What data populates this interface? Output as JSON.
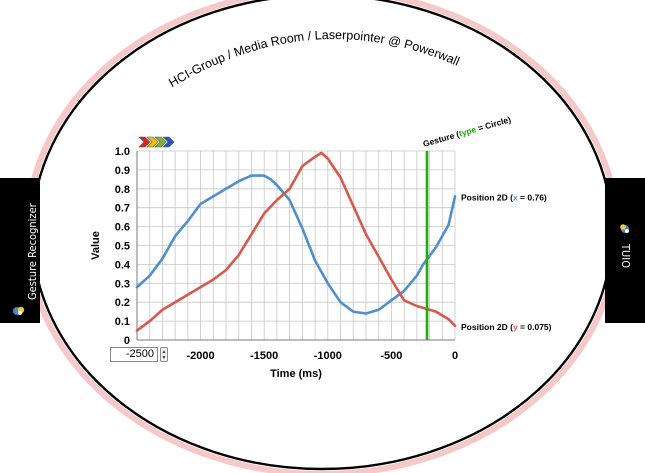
{
  "header": {
    "title": "HCI-Group / Media Room / Laserpointer @ Powerwall"
  },
  "left_tab": {
    "label": "Gesture Recognizer",
    "icon": "recognizer-icon"
  },
  "right_tab": {
    "label": "TUIO",
    "icon": "tuio-icon"
  },
  "gesture_marker": {
    "prefix": "Gesture (",
    "key": "type",
    "sep": " = ",
    "value": "Circle",
    "suffix": ")",
    "time": -220,
    "color": "#22aa11"
  },
  "stepper": {
    "value": "-2500"
  },
  "colors": {
    "x_series": "#4f8fcf",
    "y_series": "#d9584e",
    "arrows": [
      "#dd2222",
      "#e8c400",
      "#7ab82a",
      "#2255cc"
    ]
  },
  "chart_data": {
    "type": "line",
    "xlabel": "Time (ms)",
    "ylabel": "Value",
    "xlim": [
      -2500,
      0
    ],
    "ylim": [
      0,
      1.0
    ],
    "xticks": [
      -2500,
      -2000,
      -1500,
      -1000,
      -500,
      0
    ],
    "yticks": [
      0,
      0.1,
      0.2,
      0.3,
      0.4,
      0.5,
      0.6,
      0.7,
      0.8,
      0.9,
      1.0
    ],
    "grid": true,
    "series": [
      {
        "name": "x",
        "legend_prefix": "Position 2D (",
        "legend_key": "x",
        "legend_value": " = 0.76)",
        "color": "#4f8fcf",
        "x": [
          -2500,
          -2400,
          -2300,
          -2200,
          -2100,
          -2000,
          -1900,
          -1800,
          -1700,
          -1600,
          -1500,
          -1450,
          -1400,
          -1300,
          -1200,
          -1100,
          -1000,
          -900,
          -800,
          -700,
          -600,
          -500,
          -400,
          -300,
          -250,
          -150,
          -50,
          0
        ],
        "y": [
          0.28,
          0.34,
          0.43,
          0.55,
          0.63,
          0.72,
          0.76,
          0.8,
          0.84,
          0.87,
          0.87,
          0.85,
          0.82,
          0.74,
          0.59,
          0.42,
          0.3,
          0.2,
          0.15,
          0.14,
          0.16,
          0.21,
          0.26,
          0.34,
          0.4,
          0.49,
          0.61,
          0.76
        ]
      },
      {
        "name": "y",
        "legend_prefix": "Position 2D (",
        "legend_key": "y",
        "legend_value": " = 0.075)",
        "color": "#d9584e",
        "x": [
          -2500,
          -2400,
          -2300,
          -2200,
          -2100,
          -2000,
          -1900,
          -1800,
          -1700,
          -1600,
          -1500,
          -1400,
          -1300,
          -1200,
          -1100,
          -1050,
          -1000,
          -900,
          -800,
          -700,
          -600,
          -500,
          -400,
          -300,
          -250,
          -150,
          -50,
          0
        ],
        "y": [
          0.05,
          0.1,
          0.16,
          0.2,
          0.24,
          0.28,
          0.32,
          0.37,
          0.45,
          0.56,
          0.67,
          0.74,
          0.8,
          0.92,
          0.97,
          0.99,
          0.96,
          0.86,
          0.71,
          0.56,
          0.44,
          0.32,
          0.21,
          0.18,
          0.17,
          0.15,
          0.11,
          0.075
        ]
      }
    ]
  }
}
